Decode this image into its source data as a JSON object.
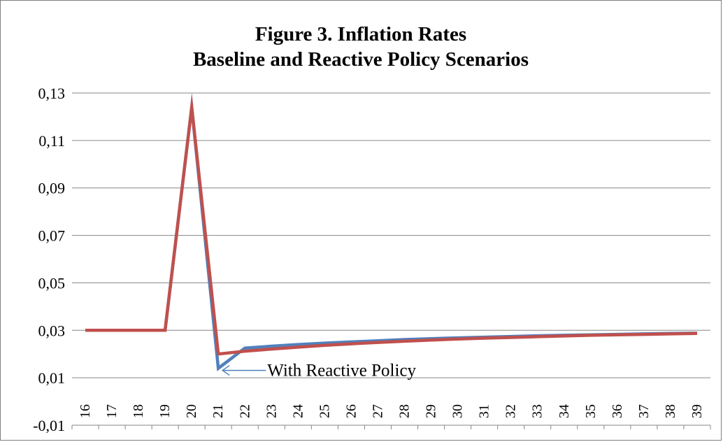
{
  "chart_data": {
    "type": "line",
    "title": "Figure 3. Inflation Rates",
    "subtitle": "Baseline and Reactive Policy Scenarios",
    "xlabel": "",
    "ylabel": "",
    "ylim": [
      -0.01,
      0.13
    ],
    "yticks": [
      "-0,01",
      "0,01",
      "0,03",
      "0,05",
      "0,07",
      "0,09",
      "0,11",
      "0,13"
    ],
    "ytick_values": [
      -0.01,
      0.01,
      0.03,
      0.05,
      0.07,
      0.09,
      0.11,
      0.13
    ],
    "grid": true,
    "x": [
      "16",
      "17",
      "18",
      "19",
      "20",
      "21",
      "22",
      "23",
      "24",
      "25",
      "26",
      "27",
      "28",
      "29",
      "30",
      "31",
      "32",
      "33",
      "34",
      "35",
      "36",
      "37",
      "38",
      "39"
    ],
    "series": [
      {
        "color": "#4f81bd",
        "values": [
          0.03,
          0.03,
          0.03,
          0.03,
          0.124,
          0.014,
          0.0225,
          0.0233,
          0.024,
          0.0246,
          0.0251,
          0.0256,
          0.0261,
          0.0265,
          0.0268,
          0.0271,
          0.0274,
          0.0277,
          0.0279,
          0.0281,
          0.0283,
          0.0285,
          0.0287,
          0.0288
        ]
      },
      {
        "color": "#c0504d",
        "values": [
          0.03,
          0.03,
          0.03,
          0.03,
          0.124,
          0.02,
          0.0212,
          0.0221,
          0.0229,
          0.0237,
          0.0243,
          0.0249,
          0.0254,
          0.0259,
          0.0263,
          0.0267,
          0.027,
          0.0273,
          0.0276,
          0.0279,
          0.0281,
          0.0283,
          0.0285,
          0.0287
        ]
      }
    ],
    "annotations": [
      {
        "text": "With Reactive Policy",
        "x": "21",
        "y": 0.014
      }
    ]
  }
}
